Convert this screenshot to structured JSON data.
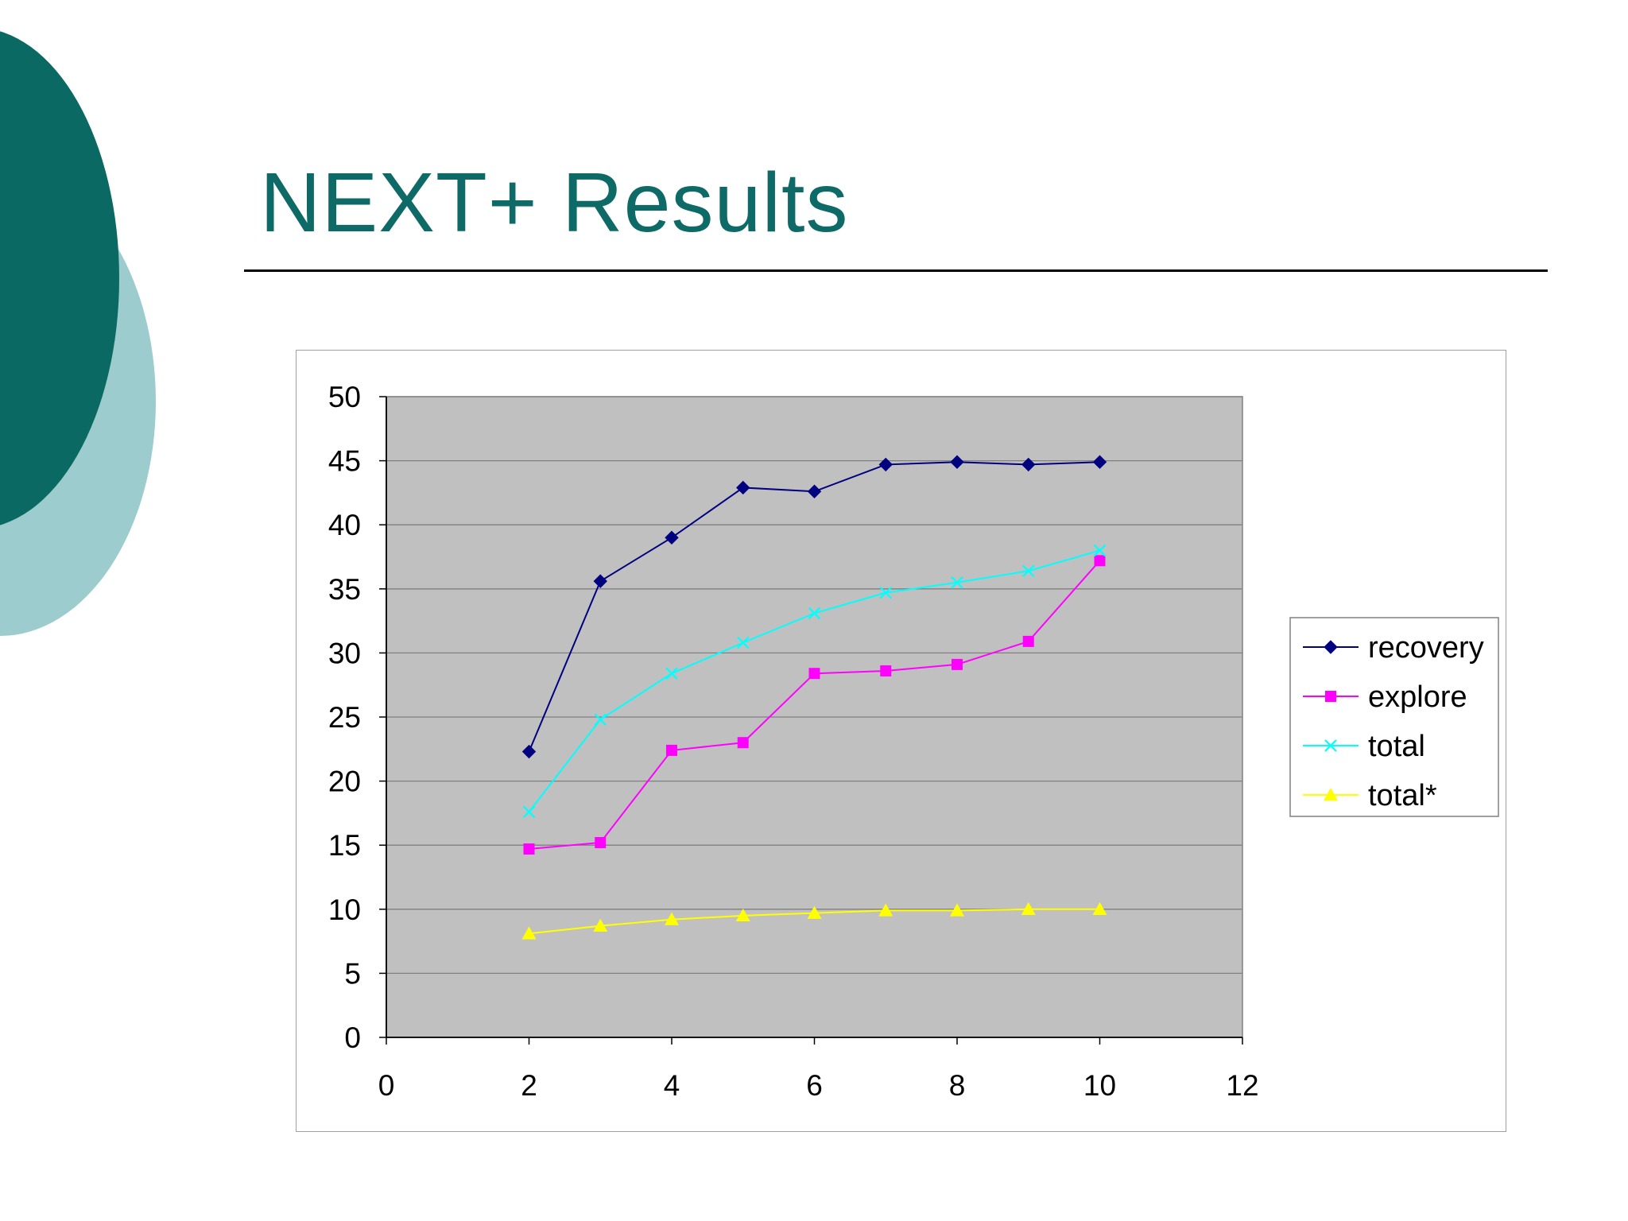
{
  "slide": {
    "title": "NEXT+ Results"
  },
  "colors": {
    "title": "#0e6a66",
    "circle_dark": "#0a6a63",
    "circle_light": "#9ccccd",
    "plot_bg": "#c0c0c0",
    "gridline": "#7f7f7f"
  },
  "chart_data": {
    "type": "line",
    "title": "",
    "xlabel": "",
    "ylabel": "",
    "xlim": [
      0,
      12
    ],
    "ylim": [
      0,
      50
    ],
    "xticks": [
      0,
      2,
      4,
      6,
      8,
      10,
      12
    ],
    "yticks": [
      0,
      5,
      10,
      15,
      20,
      25,
      30,
      35,
      40,
      45,
      50
    ],
    "grid": "horizontal",
    "legend_position": "right",
    "x": [
      2,
      3,
      4,
      5,
      6,
      7,
      8,
      9,
      10
    ],
    "series": [
      {
        "name": "recovery",
        "color": "#000080",
        "marker": "diamond",
        "values": [
          22.3,
          35.6,
          39.0,
          42.9,
          42.6,
          44.7,
          44.9,
          44.7,
          44.9
        ]
      },
      {
        "name": "explore",
        "color": "#ff00ff",
        "marker": "square",
        "values": [
          14.7,
          15.2,
          22.4,
          23.0,
          28.4,
          28.6,
          29.1,
          30.9,
          37.2
        ]
      },
      {
        "name": "total",
        "color": "#00ffff",
        "marker": "x",
        "values": [
          17.6,
          24.8,
          28.4,
          30.8,
          33.1,
          34.7,
          35.5,
          36.4,
          38.0
        ]
      },
      {
        "name": "total*",
        "color": "#ffff00",
        "marker": "triangle",
        "values": [
          8.1,
          8.7,
          9.2,
          9.5,
          9.7,
          9.9,
          9.9,
          10.0,
          10.0
        ]
      }
    ]
  }
}
